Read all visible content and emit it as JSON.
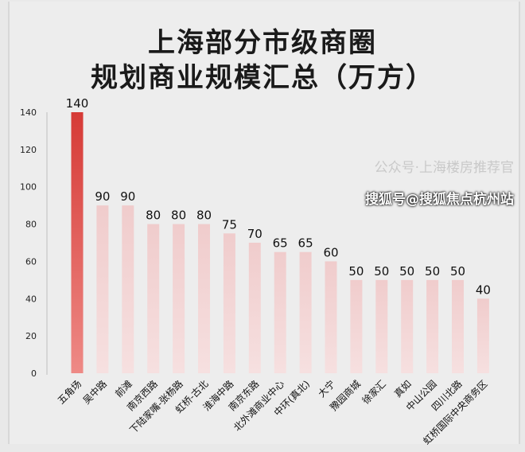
{
  "chart_data": {
    "type": "bar",
    "title": [
      "上海部分市级商圈",
      "规划商业规模汇总（万方）"
    ],
    "categories": [
      "五角场",
      "吴中路",
      "前滩",
      "南京西路",
      "下陆家嘴-张杨路",
      "虹桥-古北",
      "淮海中路",
      "南京东路",
      "北外滩商业中心",
      "中环(真北)",
      "大宁",
      "豫园商城",
      "徐家汇",
      "真如",
      "中山公园",
      "四川北路",
      "虹桥国际中央商务区"
    ],
    "values": [
      140,
      90,
      90,
      80,
      80,
      80,
      75,
      70,
      65,
      65,
      60,
      50,
      50,
      50,
      50,
      50,
      40
    ],
    "ylim": [
      0,
      140
    ],
    "yticks": [
      0,
      20,
      40,
      60,
      80,
      100,
      120,
      140
    ],
    "grid": false,
    "colors": {
      "highlight": "#d9403c",
      "bar": "#f2d2d2"
    }
  },
  "watermark": {
    "main": "搜狐号@搜狐焦点杭州站",
    "faint": "公众号·上海楼房推荐官"
  }
}
